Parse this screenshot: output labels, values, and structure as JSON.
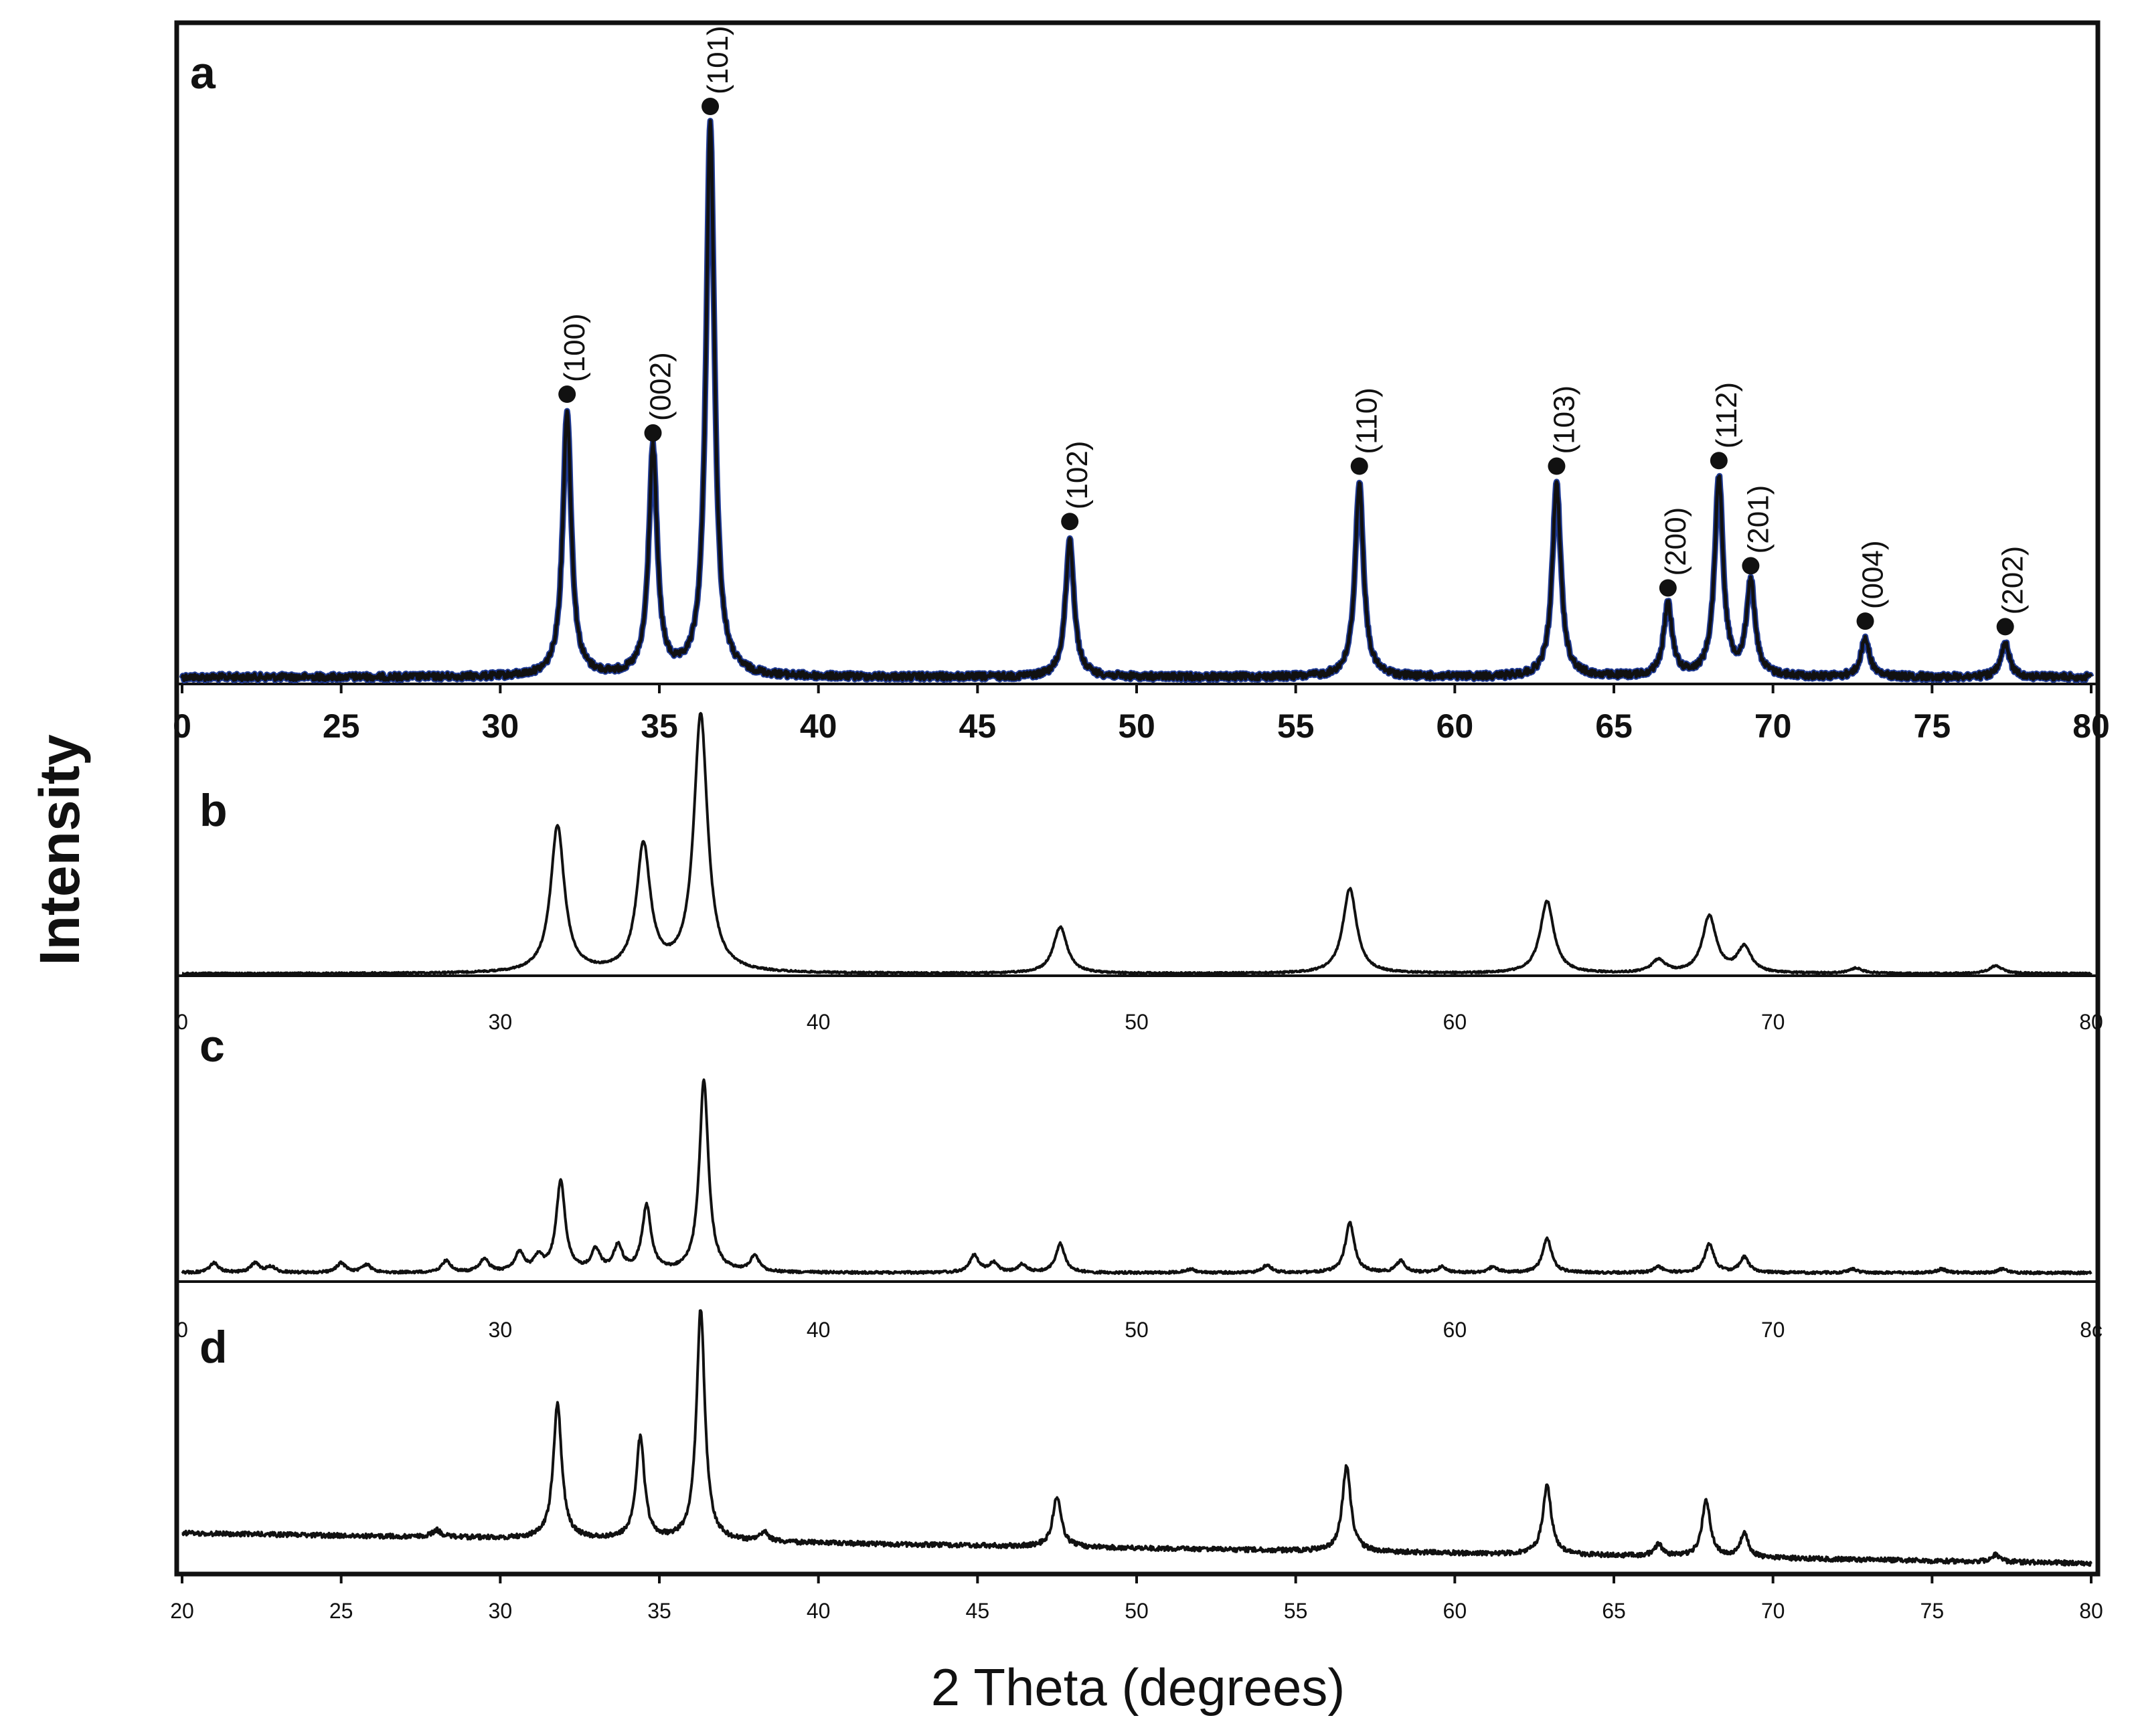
{
  "chart_data": [
    {
      "type": "line",
      "panel": "a",
      "xlim": [
        20,
        80
      ],
      "ticks": [
        "0",
        "25",
        "30",
        "35",
        "40",
        "45",
        "50",
        "55",
        "60",
        "65",
        "70",
        "75",
        "80"
      ],
      "colors": {
        "line": "#111111",
        "overlay": "#1f3a93"
      },
      "peaks": [
        {
          "x": 32.1,
          "h": 0.48,
          "label": "(100)"
        },
        {
          "x": 34.8,
          "h": 0.41,
          "label": "(002)"
        },
        {
          "x": 36.6,
          "h": 1.0,
          "label": "(101)"
        },
        {
          "x": 47.9,
          "h": 0.25,
          "label": "(102)"
        },
        {
          "x": 57.0,
          "h": 0.35,
          "label": "(110)"
        },
        {
          "x": 63.2,
          "h": 0.35,
          "label": "(103)"
        },
        {
          "x": 66.7,
          "h": 0.13,
          "label": "(200)"
        },
        {
          "x": 68.3,
          "h": 0.36,
          "label": "(112)"
        },
        {
          "x": 69.3,
          "h": 0.17,
          "label": "(201)"
        },
        {
          "x": 72.9,
          "h": 0.07,
          "label": "(004)"
        },
        {
          "x": 77.3,
          "h": 0.06,
          "label": "(202)"
        }
      ]
    },
    {
      "type": "line",
      "panel": "b",
      "xlim": [
        20,
        80
      ],
      "ticks": [
        "0",
        "30",
        "40",
        "50",
        "60",
        "70",
        "80"
      ],
      "peaks": [
        {
          "x": 31.8,
          "h": 0.57
        },
        {
          "x": 34.5,
          "h": 0.49
        },
        {
          "x": 36.3,
          "h": 1.0
        },
        {
          "x": 47.6,
          "h": 0.18
        },
        {
          "x": 56.7,
          "h": 0.33
        },
        {
          "x": 62.9,
          "h": 0.28
        },
        {
          "x": 66.4,
          "h": 0.05
        },
        {
          "x": 68.0,
          "h": 0.22
        },
        {
          "x": 69.1,
          "h": 0.1
        },
        {
          "x": 72.6,
          "h": 0.02
        },
        {
          "x": 77.0,
          "h": 0.03
        }
      ]
    },
    {
      "type": "line",
      "panel": "c",
      "xlim": [
        20,
        80
      ],
      "ticks": [
        "0",
        "30",
        "40",
        "50",
        "60",
        "70",
        "8c"
      ],
      "peaks": [
        {
          "x": 21.0,
          "h": 0.05
        },
        {
          "x": 22.3,
          "h": 0.05
        },
        {
          "x": 22.8,
          "h": 0.03
        },
        {
          "x": 25.0,
          "h": 0.05
        },
        {
          "x": 25.8,
          "h": 0.04
        },
        {
          "x": 28.3,
          "h": 0.06
        },
        {
          "x": 29.5,
          "h": 0.07
        },
        {
          "x": 30.6,
          "h": 0.1
        },
        {
          "x": 31.2,
          "h": 0.07
        },
        {
          "x": 31.9,
          "h": 0.47
        },
        {
          "x": 33.0,
          "h": 0.11
        },
        {
          "x": 33.7,
          "h": 0.13
        },
        {
          "x": 34.6,
          "h": 0.34
        },
        {
          "x": 36.4,
          "h": 1.0
        },
        {
          "x": 38.0,
          "h": 0.08
        },
        {
          "x": 44.9,
          "h": 0.09
        },
        {
          "x": 45.5,
          "h": 0.05
        },
        {
          "x": 46.4,
          "h": 0.04
        },
        {
          "x": 47.6,
          "h": 0.15
        },
        {
          "x": 51.7,
          "h": 0.02
        },
        {
          "x": 54.1,
          "h": 0.04
        },
        {
          "x": 56.7,
          "h": 0.26
        },
        {
          "x": 58.3,
          "h": 0.06
        },
        {
          "x": 59.6,
          "h": 0.03
        },
        {
          "x": 61.2,
          "h": 0.03
        },
        {
          "x": 62.9,
          "h": 0.18
        },
        {
          "x": 66.4,
          "h": 0.03
        },
        {
          "x": 68.0,
          "h": 0.15
        },
        {
          "x": 69.1,
          "h": 0.08
        },
        {
          "x": 72.5,
          "h": 0.02
        },
        {
          "x": 75.3,
          "h": 0.02
        },
        {
          "x": 77.2,
          "h": 0.02
        }
      ]
    },
    {
      "type": "line",
      "panel": "d",
      "xlabel": "2 Theta (degrees)",
      "ylabel": "Intensity",
      "xlim": [
        20,
        80
      ],
      "ticks": [
        "20",
        "25",
        "30",
        "35",
        "40",
        "45",
        "50",
        "55",
        "60",
        "65",
        "70",
        "75",
        "80"
      ],
      "peaks": [
        {
          "x": 28.0,
          "h": 0.03
        },
        {
          "x": 31.8,
          "h": 0.58
        },
        {
          "x": 34.4,
          "h": 0.44
        },
        {
          "x": 36.3,
          "h": 1.0
        },
        {
          "x": 38.3,
          "h": 0.04
        },
        {
          "x": 47.5,
          "h": 0.22
        },
        {
          "x": 56.6,
          "h": 0.37
        },
        {
          "x": 62.9,
          "h": 0.3
        },
        {
          "x": 66.4,
          "h": 0.05
        },
        {
          "x": 67.9,
          "h": 0.24
        },
        {
          "x": 69.1,
          "h": 0.1
        },
        {
          "x": 77.0,
          "h": 0.03
        }
      ]
    }
  ]
}
